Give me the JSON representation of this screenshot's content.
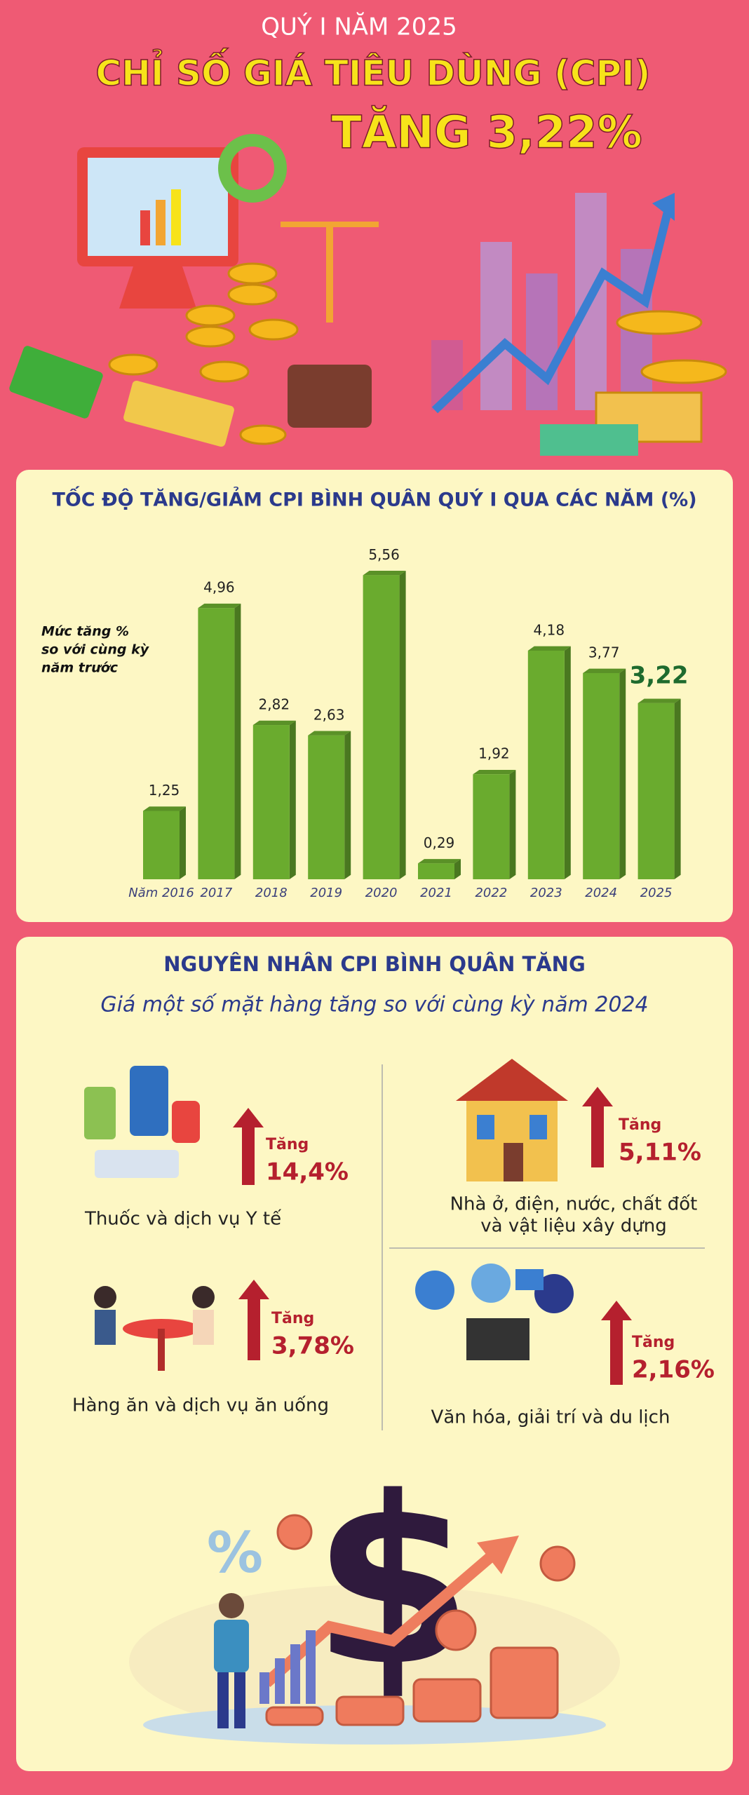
{
  "header": {
    "kicker": "QUÝ I NĂM 2025",
    "title": "CHỈ SỐ GIÁ TIÊU DÙNG (CPI)",
    "headline": "TĂNG 3,22%"
  },
  "chart_data": {
    "type": "bar",
    "title": "TỐC ĐỘ TĂNG/GIẢM CPI BÌNH QUÂN QUÝ I QUA CÁC NĂM (%)",
    "annotation": [
      "Mức tăng %",
      "so với cùng kỳ",
      "năm trước"
    ],
    "categories": [
      "Năm 2016",
      "2017",
      "2018",
      "2019",
      "2020",
      "2021",
      "2022",
      "2023",
      "2024",
      "2025"
    ],
    "values": [
      1.25,
      4.96,
      2.82,
      2.63,
      5.56,
      0.29,
      1.92,
      4.18,
      3.77,
      3.22
    ],
    "value_labels": [
      "1,25",
      "4,96",
      "2,82",
      "2,63",
      "5,56",
      "0,29",
      "1,92",
      "4,18",
      "3,77",
      "3,22"
    ],
    "color": "#6aab2e"
  },
  "causes": {
    "title": "NGUYÊN NHÂN CPI BÌNH QUÂN TĂNG",
    "subtitle": "Giá một số mặt hàng tăng so với cùng kỳ năm 2024",
    "items": [
      {
        "label": [
          "Thuốc và dịch vụ Y tế"
        ],
        "change": "Tăng",
        "rate": "14,4%"
      },
      {
        "label": [
          "Nhà ở, điện, nước, chất đốt",
          "và vật liệu xây dựng"
        ],
        "change": "Tăng",
        "rate": "5,11%"
      },
      {
        "label": [
          "Hàng ăn và dịch vụ ăn uống"
        ],
        "change": "Tăng",
        "rate": "3,78%"
      },
      {
        "label": [
          "Văn hóa, giải trí và du lịch"
        ],
        "change": "Tăng",
        "rate": "2,16%"
      }
    ]
  }
}
